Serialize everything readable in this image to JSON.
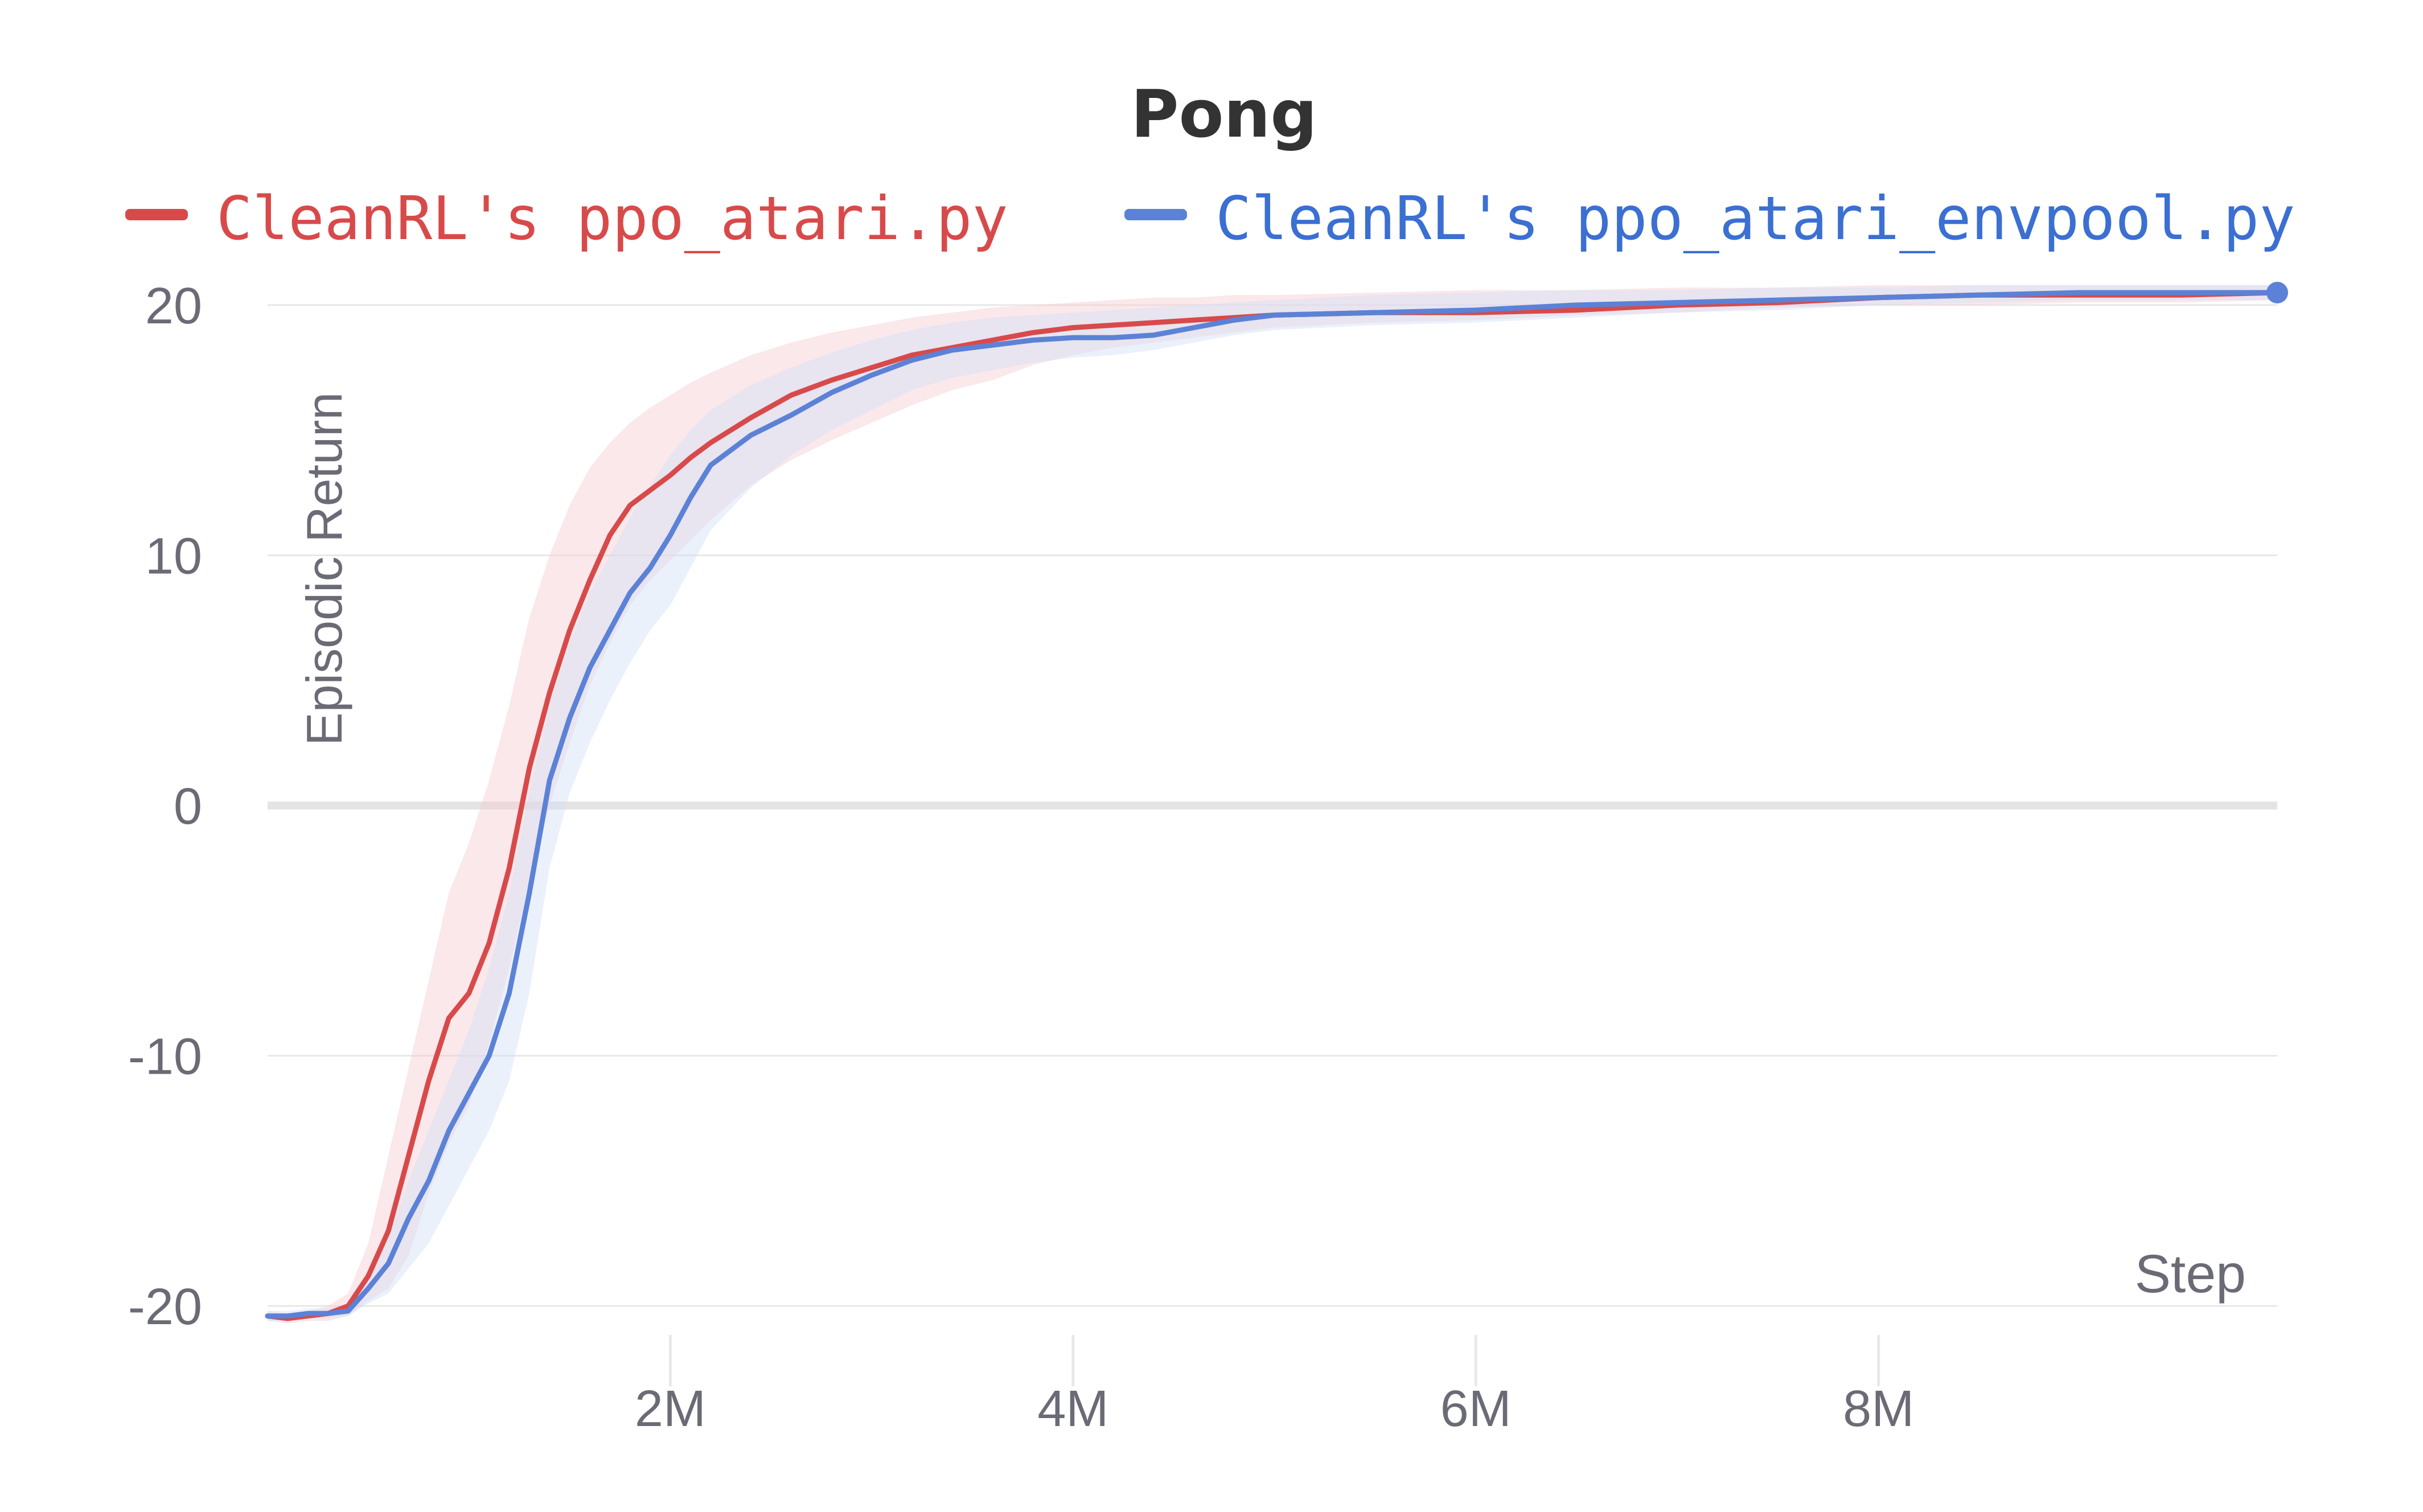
{
  "chart_data": {
    "type": "line",
    "title": "Pong",
    "xlabel": "Step",
    "ylabel": "Episodic Return",
    "xlim": [
      0,
      9980000
    ],
    "ylim": [
      -21.5,
      21.5
    ],
    "x_ticks": [
      2000000,
      4000000,
      6000000,
      8000000
    ],
    "x_tick_labels": [
      "2M",
      "4M",
      "6M",
      "8M"
    ],
    "y_ticks": [
      -20,
      -10,
      0,
      10,
      20
    ],
    "y_tick_labels": [
      "-20",
      "-10",
      "0",
      "10",
      "20"
    ],
    "grid": true,
    "legend": "top",
    "series": [
      {
        "name": "CleanRL's ppo_atari.py",
        "color": "#d84a4a",
        "band_color": "#f5cdd2",
        "x": [
          0,
          100000,
          200000,
          300000,
          400000,
          500000,
          600000,
          700000,
          800000,
          900000,
          1000000,
          1100000,
          1200000,
          1300000,
          1400000,
          1500000,
          1600000,
          1700000,
          1800000,
          1900000,
          2000000,
          2100000,
          2200000,
          2400000,
          2600000,
          2800000,
          3000000,
          3200000,
          3400000,
          3600000,
          3800000,
          4000000,
          4200000,
          4400000,
          4600000,
          4800000,
          5000000,
          5500000,
          6000000,
          6500000,
          7000000,
          7500000,
          8000000,
          8500000,
          9000000,
          9500000,
          9980000
        ],
        "y": [
          -20.4,
          -20.5,
          -20.4,
          -20.3,
          -20.0,
          -18.8,
          -17.0,
          -14.0,
          -11.0,
          -8.5,
          -7.5,
          -5.5,
          -2.5,
          1.5,
          4.5,
          7.0,
          9.0,
          10.8,
          12.0,
          12.6,
          13.2,
          13.9,
          14.5,
          15.5,
          16.4,
          17.0,
          17.5,
          18.0,
          18.3,
          18.6,
          18.9,
          19.1,
          19.2,
          19.3,
          19.4,
          19.5,
          19.6,
          19.7,
          19.7,
          19.8,
          20.0,
          20.1,
          20.3,
          20.4,
          20.4,
          20.4,
          20.5
        ],
        "band_upper": [
          -20.2,
          -20.3,
          -20.2,
          -20.0,
          -19.5,
          -17.5,
          -14.0,
          -10.5,
          -7.0,
          -3.5,
          -1.5,
          1.0,
          4.0,
          7.5,
          10.0,
          12.0,
          13.5,
          14.5,
          15.3,
          15.9,
          16.4,
          16.9,
          17.3,
          18.0,
          18.5,
          18.9,
          19.2,
          19.5,
          19.7,
          19.9,
          20.0,
          20.1,
          20.2,
          20.3,
          20.3,
          20.4,
          20.4,
          20.5,
          20.6,
          20.6,
          20.7,
          20.7,
          20.8,
          20.8,
          20.8,
          20.8,
          20.8
        ],
        "band_lower": [
          -20.6,
          -20.7,
          -20.6,
          -20.6,
          -20.4,
          -19.8,
          -19.3,
          -18.0,
          -15.5,
          -13.5,
          -12.0,
          -9.5,
          -6.5,
          -3.0,
          0.0,
          2.5,
          4.8,
          6.5,
          8.0,
          9.0,
          9.8,
          10.6,
          11.4,
          12.8,
          13.8,
          14.6,
          15.3,
          16.0,
          16.6,
          17.0,
          17.6,
          18.0,
          18.3,
          18.5,
          18.7,
          18.9,
          19.1,
          19.3,
          19.4,
          19.6,
          19.7,
          19.9,
          20.0,
          20.0,
          20.1,
          20.1,
          20.2
        ]
      },
      {
        "name": "CleanRL's ppo_atari_envpool.py",
        "color": "#5b82d6",
        "band_color": "#d3e0f7",
        "x": [
          0,
          100000,
          200000,
          300000,
          400000,
          500000,
          600000,
          700000,
          800000,
          900000,
          1000000,
          1100000,
          1200000,
          1300000,
          1400000,
          1500000,
          1600000,
          1700000,
          1800000,
          1900000,
          2000000,
          2100000,
          2200000,
          2400000,
          2600000,
          2800000,
          3000000,
          3200000,
          3400000,
          3600000,
          3800000,
          4000000,
          4200000,
          4400000,
          4600000,
          4800000,
          5000000,
          5500000,
          6000000,
          6500000,
          7000000,
          7500000,
          8000000,
          8500000,
          9000000,
          9500000,
          9980000
        ],
        "y": [
          -20.4,
          -20.4,
          -20.3,
          -20.3,
          -20.2,
          -19.3,
          -18.3,
          -16.5,
          -15.0,
          -13.0,
          -11.5,
          -10.0,
          -7.5,
          -3.5,
          1.0,
          3.5,
          5.5,
          7.0,
          8.5,
          9.5,
          10.8,
          12.3,
          13.6,
          14.8,
          15.6,
          16.5,
          17.2,
          17.8,
          18.2,
          18.4,
          18.6,
          18.7,
          18.7,
          18.8,
          19.1,
          19.4,
          19.6,
          19.7,
          19.8,
          20.0,
          20.1,
          20.2,
          20.3,
          20.4,
          20.5,
          20.5,
          20.5
        ],
        "band_upper": [
          -20.2,
          -20.2,
          -20.1,
          -20.1,
          -19.9,
          -18.8,
          -17.3,
          -15.0,
          -13.0,
          -11.0,
          -9.0,
          -6.5,
          -3.5,
          0.5,
          4.0,
          6.5,
          8.5,
          10.0,
          11.5,
          12.8,
          14.0,
          15.0,
          15.8,
          16.8,
          17.5,
          18.1,
          18.6,
          19.0,
          19.3,
          19.5,
          19.6,
          19.7,
          19.8,
          19.9,
          20.0,
          20.1,
          20.2,
          20.4,
          20.5,
          20.6,
          20.6,
          20.7,
          20.7,
          20.8,
          20.8,
          20.8,
          20.8
        ],
        "band_lower": [
          -20.6,
          -20.6,
          -20.5,
          -20.5,
          -20.4,
          -19.9,
          -19.5,
          -18.5,
          -17.5,
          -16.0,
          -14.5,
          -13.0,
          -11.0,
          -7.5,
          -2.5,
          0.5,
          2.5,
          4.2,
          5.7,
          7.0,
          8.0,
          9.5,
          11.0,
          12.7,
          14.0,
          15.0,
          15.8,
          16.6,
          17.1,
          17.4,
          17.7,
          17.9,
          18.0,
          18.2,
          18.5,
          18.8,
          19.0,
          19.2,
          19.3,
          19.5,
          19.7,
          19.8,
          20.0,
          20.1,
          20.2,
          20.2,
          20.2
        ]
      }
    ]
  }
}
